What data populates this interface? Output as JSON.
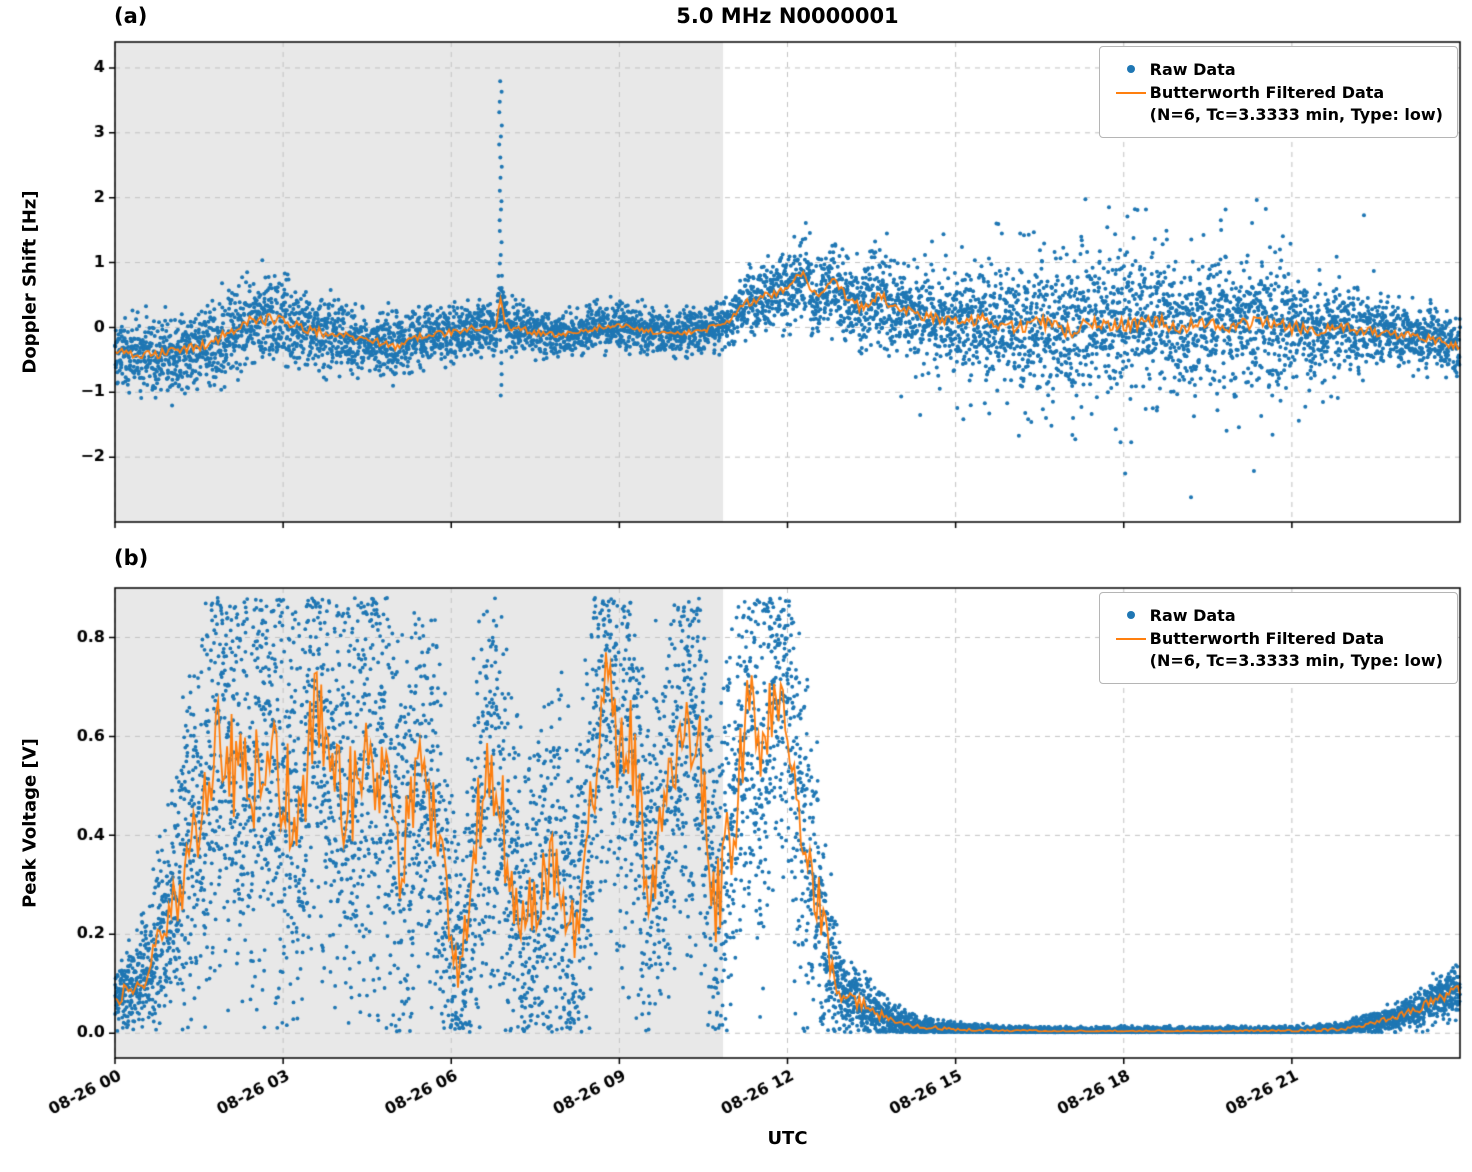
{
  "title": "5.0 MHz N0000001",
  "x_axis": {
    "label": "UTC",
    "range_hours": [
      0,
      24
    ],
    "tick_hours": [
      0,
      3,
      6,
      9,
      12,
      15,
      18,
      21
    ],
    "tick_labels": [
      "08-26 00",
      "08-26 03",
      "08-26 06",
      "08-26 09",
      "08-26 12",
      "08-26 15",
      "08-26 18",
      "08-26 21"
    ]
  },
  "legend": {
    "raw_label": "Raw Data",
    "filtered_label": "Butterworth Filtered Data",
    "filtered_sublabel": "(N=6, Tc=3.3333 min, Type: low)"
  },
  "colors": {
    "raw": "#1f77b4",
    "filtered": "#ff7f0e",
    "shade": "#e8e8e8",
    "grid": "#c3c3c3",
    "axis": "#000000"
  },
  "shaded_region_hours": [
    0,
    10.85
  ],
  "chart_data": [
    {
      "type": "scatter",
      "panel": "(a)",
      "ylabel": "Doppler Shift [Hz]",
      "ylim": [
        -3.0,
        4.4
      ],
      "y_tick_values": [
        4,
        3,
        2,
        1,
        0,
        -1,
        -2
      ],
      "y_tick_labels": [
        "4",
        "3",
        "2",
        "1",
        "0",
        "−1",
        "−2"
      ],
      "series": [
        {
          "name": "Raw Data",
          "render": "scatter"
        },
        {
          "name": "Butterworth Filtered Data (N=6, Tc=3.3333 min, Type: low)",
          "render": "line"
        }
      ],
      "x_hours": [
        0,
        0.5,
        1,
        1.5,
        2,
        2.5,
        3,
        3.5,
        4,
        4.5,
        5,
        5.5,
        6,
        6.5,
        6.8,
        6.88,
        6.98,
        7.2,
        7.5,
        8,
        8.5,
        9,
        9.5,
        10,
        10.5,
        10.9,
        11.2,
        11.5,
        12,
        12.3,
        12.5,
        12.8,
        13,
        13.3,
        13.6,
        14,
        14.5,
        15,
        15.5,
        16,
        16.5,
        17,
        17.5,
        18,
        18.5,
        19,
        19.5,
        20,
        20.5,
        21,
        21.5,
        22,
        22.5,
        23,
        23.5,
        24
      ],
      "filtered_y": [
        -0.35,
        -0.42,
        -0.38,
        -0.3,
        -0.1,
        0.15,
        0.1,
        -0.05,
        -0.12,
        -0.2,
        -0.28,
        -0.12,
        -0.08,
        0.0,
        -0.02,
        0.45,
        0.02,
        -0.02,
        -0.08,
        -0.12,
        -0.02,
        0.04,
        -0.06,
        -0.1,
        -0.04,
        0.05,
        0.35,
        0.45,
        0.6,
        0.85,
        0.45,
        0.7,
        0.55,
        0.3,
        0.5,
        0.3,
        0.15,
        0.08,
        0.12,
        0.0,
        0.08,
        -0.05,
        0.08,
        0.02,
        0.12,
        -0.02,
        0.08,
        0.02,
        0.08,
        0.0,
        -0.04,
        0.0,
        -0.08,
        -0.12,
        -0.18,
        -0.3
      ],
      "raw_spread": [
        0.22,
        0.25,
        0.28,
        0.25,
        0.3,
        0.32,
        0.3,
        0.25,
        0.22,
        0.2,
        0.22,
        0.2,
        0.18,
        0.18,
        0.18,
        0.2,
        0.18,
        0.18,
        0.16,
        0.15,
        0.15,
        0.15,
        0.15,
        0.15,
        0.16,
        0.18,
        0.2,
        0.22,
        0.25,
        0.28,
        0.28,
        0.28,
        0.3,
        0.3,
        0.3,
        0.3,
        0.3,
        0.3,
        0.32,
        0.35,
        0.38,
        0.4,
        0.4,
        0.4,
        0.4,
        0.4,
        0.38,
        0.38,
        0.36,
        0.34,
        0.3,
        0.28,
        0.25,
        0.22,
        0.2,
        0.2
      ],
      "raw_halo_p": [
        0,
        0,
        0,
        0,
        0,
        0,
        0,
        0,
        0,
        0,
        0,
        0,
        0,
        0,
        0,
        0,
        0,
        0,
        0,
        0,
        0,
        0,
        0,
        0,
        0,
        0,
        0,
        0,
        0,
        0,
        0,
        0,
        0,
        0,
        0,
        0.08,
        0.15,
        0.2,
        0.25,
        0.28,
        0.3,
        0.32,
        0.32,
        0.32,
        0.32,
        0.3,
        0.3,
        0.28,
        0.25,
        0.2,
        0.12,
        0.06,
        0.02,
        0,
        0,
        0
      ],
      "raw_halo_spread": 0.85,
      "events": {
        "spike_streak": {
          "x": 6.88,
          "y_min": -1.05,
          "y_max": 3.8,
          "count": 30
        },
        "outliers": [
          [
            19.2,
            -2.62
          ]
        ]
      }
    },
    {
      "type": "scatter",
      "panel": "(b)",
      "ylabel": "Peak Voltage [V]",
      "ylim": [
        -0.05,
        0.9
      ],
      "y_tick_values": [
        0.8,
        0.6,
        0.4,
        0.2,
        0.0
      ],
      "y_tick_labels": [
        "0.8",
        "0.6",
        "0.4",
        "0.2",
        "0.0"
      ],
      "series": [
        {
          "name": "Raw Data",
          "render": "scatter"
        },
        {
          "name": "Butterworth Filtered Data (N=6, Tc=3.3333 min, Type: low)",
          "render": "line"
        }
      ],
      "x_hours": [
        0,
        0.3,
        0.6,
        1,
        1.3,
        1.6,
        1.9,
        2.1,
        2.4,
        2.7,
        3,
        3.3,
        3.6,
        3.9,
        4.2,
        4.5,
        4.8,
        5.1,
        5.4,
        5.7,
        6,
        6.2,
        6.5,
        6.8,
        7,
        7.3,
        7.6,
        7.9,
        8.2,
        8.5,
        8.8,
        9,
        9.2,
        9.5,
        9.8,
        10.1,
        10.4,
        10.7,
        11,
        11.3,
        11.5,
        11.8,
        12,
        12.2,
        12.5,
        12.8,
        13,
        13.3,
        13.6,
        14,
        14.5,
        15,
        16,
        17,
        18,
        19,
        20,
        21,
        21.5,
        22,
        22.5,
        23,
        23.3,
        23.6,
        24
      ],
      "filtered_y": [
        0.07,
        0.09,
        0.13,
        0.25,
        0.35,
        0.5,
        0.62,
        0.55,
        0.48,
        0.55,
        0.5,
        0.42,
        0.68,
        0.5,
        0.48,
        0.55,
        0.5,
        0.35,
        0.55,
        0.45,
        0.18,
        0.14,
        0.45,
        0.55,
        0.35,
        0.22,
        0.3,
        0.35,
        0.2,
        0.45,
        0.75,
        0.55,
        0.6,
        0.3,
        0.4,
        0.65,
        0.6,
        0.25,
        0.4,
        0.68,
        0.5,
        0.72,
        0.65,
        0.45,
        0.3,
        0.12,
        0.08,
        0.06,
        0.04,
        0.02,
        0.012,
        0.008,
        0.005,
        0.004,
        0.004,
        0.004,
        0.004,
        0.005,
        0.006,
        0.01,
        0.02,
        0.04,
        0.05,
        0.07,
        0.09
      ],
      "raw_spread": [
        0.03,
        0.04,
        0.06,
        0.1,
        0.15,
        0.18,
        0.2,
        0.2,
        0.2,
        0.2,
        0.2,
        0.18,
        0.18,
        0.2,
        0.2,
        0.2,
        0.2,
        0.18,
        0.18,
        0.18,
        0.12,
        0.12,
        0.18,
        0.18,
        0.16,
        0.14,
        0.16,
        0.16,
        0.14,
        0.18,
        0.18,
        0.18,
        0.18,
        0.16,
        0.16,
        0.18,
        0.18,
        0.15,
        0.18,
        0.18,
        0.18,
        0.16,
        0.16,
        0.15,
        0.12,
        0.06,
        0.04,
        0.03,
        0.02,
        0.012,
        0.008,
        0.006,
        0.004,
        0.004,
        0.004,
        0.004,
        0.004,
        0.004,
        0.005,
        0.006,
        0.01,
        0.015,
        0.018,
        0.02,
        0.025
      ],
      "y_clip": [
        0.002,
        0.88
      ]
    }
  ]
}
